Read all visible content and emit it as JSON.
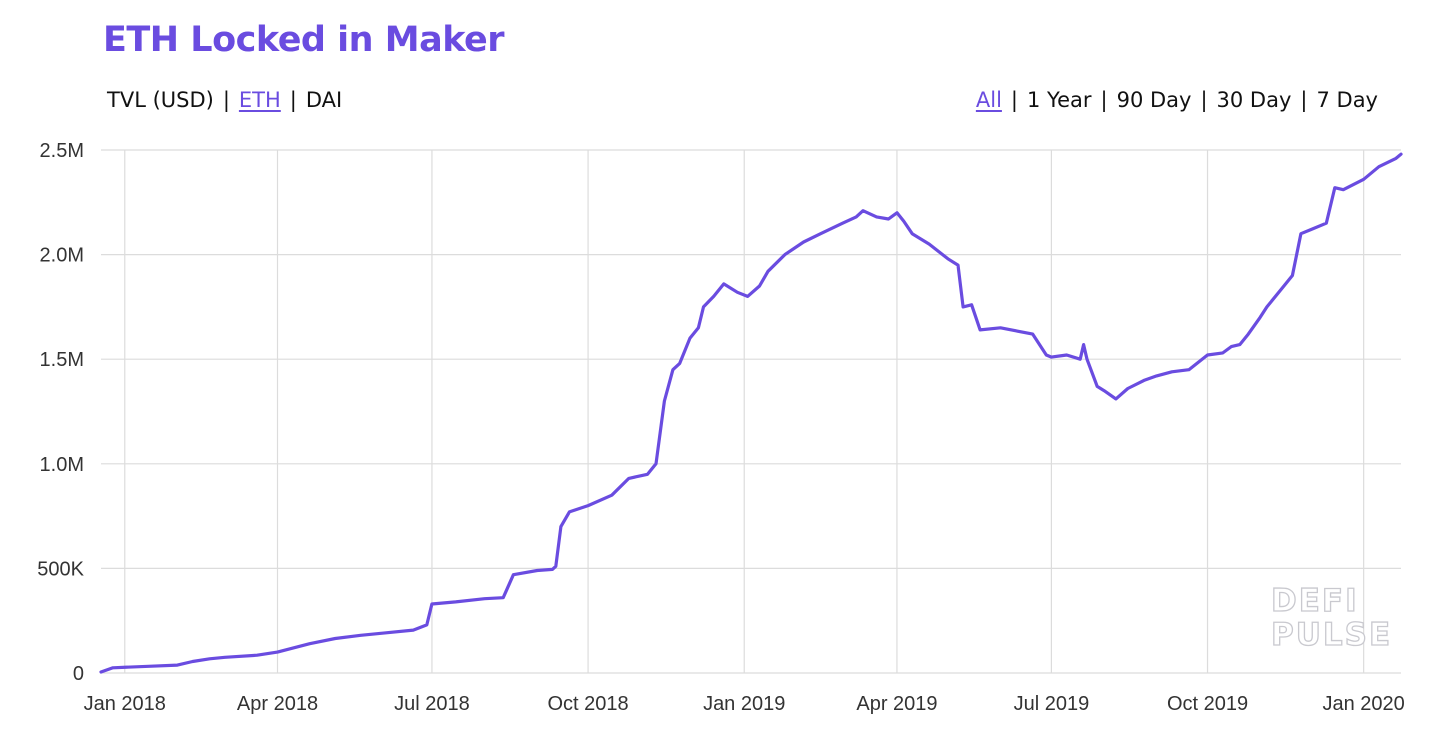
{
  "header": {
    "title": "ETH Locked in Maker",
    "metric_options": [
      {
        "label": "TVL (USD)",
        "active": false
      },
      {
        "label": "ETH",
        "active": true
      },
      {
        "label": "DAI",
        "active": false
      }
    ],
    "range_options": [
      {
        "label": "All",
        "active": true
      },
      {
        "label": "1 Year",
        "active": false
      },
      {
        "label": "90 Day",
        "active": false
      },
      {
        "label": "30 Day",
        "active": false
      },
      {
        "label": "7 Day",
        "active": false
      }
    ],
    "separator": "|"
  },
  "watermark": {
    "line1": "DEFI",
    "line2": "PULSE"
  },
  "colors": {
    "accent": "#6a4ce0",
    "line": "#6a4ce0",
    "grid": "#dcdcdc"
  },
  "chart_data": {
    "type": "line",
    "title": "ETH Locked in Maker",
    "xlabel": "",
    "ylabel": "",
    "grid": true,
    "y_ticks": [
      {
        "value": 0,
        "label": "0"
      },
      {
        "value": 500000,
        "label": "500K"
      },
      {
        "value": 1000000,
        "label": "1.0M"
      },
      {
        "value": 1500000,
        "label": "1.5M"
      },
      {
        "value": 2000000,
        "label": "2.0M"
      },
      {
        "value": 2500000,
        "label": "2.5M"
      }
    ],
    "x_ticks": [
      {
        "date": "2018-01-01",
        "label": "Jan 2018"
      },
      {
        "date": "2018-04-01",
        "label": "Apr 2018"
      },
      {
        "date": "2018-07-01",
        "label": "Jul 2018"
      },
      {
        "date": "2018-10-01",
        "label": "Oct 2018"
      },
      {
        "date": "2019-01-01",
        "label": "Jan 2019"
      },
      {
        "date": "2019-04-01",
        "label": "Apr 2019"
      },
      {
        "date": "2019-07-01",
        "label": "Jul 2019"
      },
      {
        "date": "2019-10-01",
        "label": "Oct 2019"
      },
      {
        "date": "2020-01-01",
        "label": "Jan 2020"
      }
    ],
    "xlim": [
      "2017-12-18",
      "2020-01-23"
    ],
    "ylim": [
      0,
      2500000
    ],
    "series": [
      {
        "x": [
          "2017-12-18",
          "2017-12-25",
          "2018-01-15",
          "2018-02-01",
          "2018-02-10",
          "2018-02-20",
          "2018-03-01",
          "2018-03-20",
          "2018-04-01",
          "2018-04-20",
          "2018-05-05",
          "2018-05-20",
          "2018-06-01",
          "2018-06-20",
          "2018-06-28",
          "2018-07-01",
          "2018-07-15",
          "2018-08-01",
          "2018-08-12",
          "2018-08-18",
          "2018-09-01",
          "2018-09-10",
          "2018-09-12",
          "2018-09-15",
          "2018-09-20",
          "2018-10-01",
          "2018-10-15",
          "2018-10-25",
          "2018-11-05",
          "2018-11-10",
          "2018-11-15",
          "2018-11-20",
          "2018-11-24",
          "2018-11-30",
          "2018-12-05",
          "2018-12-08",
          "2018-12-14",
          "2018-12-20",
          "2018-12-28",
          "2019-01-03",
          "2019-01-10",
          "2019-01-15",
          "2019-01-25",
          "2019-02-05",
          "2019-02-15",
          "2019-02-28",
          "2019-03-08",
          "2019-03-12",
          "2019-03-20",
          "2019-03-27",
          "2019-04-01",
          "2019-04-05",
          "2019-04-10",
          "2019-04-20",
          "2019-05-01",
          "2019-05-07",
          "2019-05-10",
          "2019-05-15",
          "2019-05-20",
          "2019-06-01",
          "2019-06-20",
          "2019-06-28",
          "2019-07-01",
          "2019-07-10",
          "2019-07-18",
          "2019-07-20",
          "2019-07-22",
          "2019-07-28",
          "2019-08-01",
          "2019-08-08",
          "2019-08-15",
          "2019-08-25",
          "2019-09-01",
          "2019-09-10",
          "2019-09-20",
          "2019-10-01",
          "2019-10-10",
          "2019-10-15",
          "2019-10-20",
          "2019-10-25",
          "2019-11-01",
          "2019-11-05",
          "2019-11-15",
          "2019-11-20",
          "2019-11-25",
          "2019-12-01",
          "2019-12-10",
          "2019-12-15",
          "2019-12-20",
          "2020-01-01",
          "2020-01-10",
          "2020-01-20",
          "2020-01-23"
        ],
        "y": [
          5000,
          25000,
          32000,
          38000,
          55000,
          68000,
          75000,
          85000,
          100000,
          140000,
          165000,
          180000,
          190000,
          205000,
          230000,
          330000,
          340000,
          355000,
          360000,
          470000,
          490000,
          495000,
          510000,
          700000,
          770000,
          800000,
          850000,
          930000,
          950000,
          1000000,
          1300000,
          1450000,
          1480000,
          1600000,
          1650000,
          1750000,
          1800000,
          1860000,
          1820000,
          1800000,
          1850000,
          1920000,
          2000000,
          2060000,
          2100000,
          2150000,
          2180000,
          2210000,
          2180000,
          2170000,
          2200000,
          2160000,
          2100000,
          2050000,
          1980000,
          1950000,
          1750000,
          1760000,
          1640000,
          1650000,
          1620000,
          1520000,
          1510000,
          1520000,
          1500000,
          1570000,
          1500000,
          1370000,
          1350000,
          1310000,
          1360000,
          1400000,
          1420000,
          1440000,
          1450000,
          1520000,
          1530000,
          1560000,
          1570000,
          1620000,
          1700000,
          1750000,
          1850000,
          1900000,
          2100000,
          2120000,
          2150000,
          2320000,
          2310000,
          2360000,
          2420000,
          2460000,
          2480000
        ]
      }
    ]
  }
}
